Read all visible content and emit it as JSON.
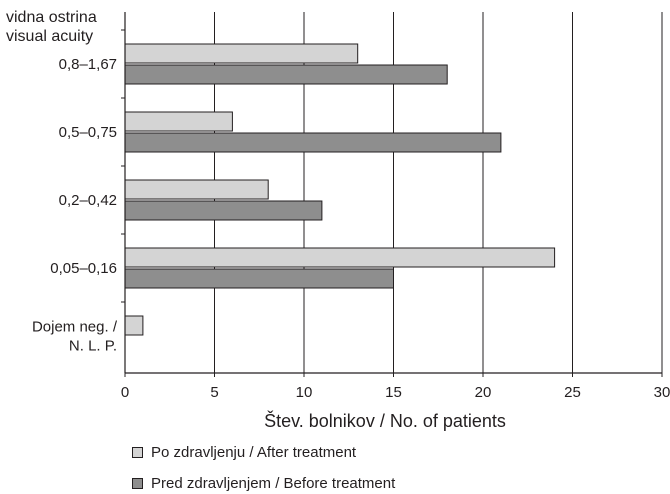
{
  "chart_data": {
    "type": "bar",
    "orientation": "horizontal",
    "ylabel": [
      "vidna ostrina",
      "visual acuity"
    ],
    "xlabel": "Štev. bolnikov / No. of patients",
    "categories": [
      [
        "0,8–1,67"
      ],
      [
        "0,5–0,75"
      ],
      [
        "0,2–0,42"
      ],
      [
        "0,05–0,16"
      ],
      [
        "Dojem neg. /",
        "N. L. P."
      ]
    ],
    "xlim": [
      0,
      30
    ],
    "xticks": [
      "0",
      "5",
      "10",
      "15",
      "20",
      "25",
      "30"
    ],
    "grid": "vertical",
    "legend_position": "bottom",
    "series": [
      {
        "name": "Po zdravljenju / After treatment",
        "values": [
          13,
          6,
          8,
          24,
          1
        ],
        "color": "#d4d4d4"
      },
      {
        "name": "Pred zdravljenjem / Before treatment",
        "values": [
          18,
          21,
          11,
          15,
          0
        ],
        "color": "#8e8e8e"
      }
    ]
  }
}
